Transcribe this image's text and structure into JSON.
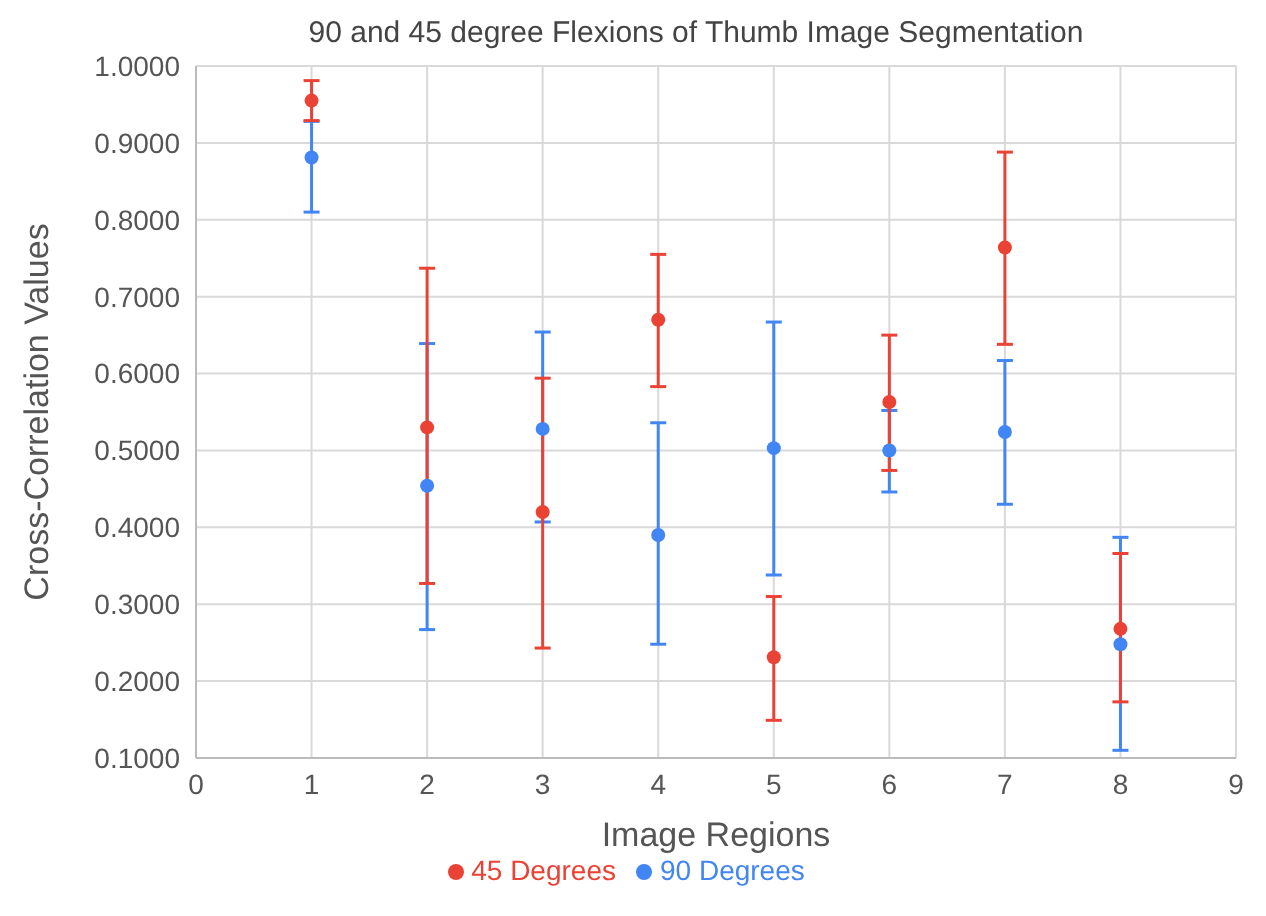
{
  "chart_data": {
    "type": "scatter",
    "title": "90 and 45 degree Flexions of Thumb Image Segmentation",
    "xlabel": "Image Regions",
    "ylabel": "Cross-Correlation Values",
    "x": [
      1,
      2,
      3,
      4,
      5,
      6,
      7,
      8
    ],
    "series": [
      {
        "name": "90 Degrees",
        "color": "#4285f4",
        "values": [
          0.881,
          0.454,
          0.528,
          0.39,
          0.503,
          0.5,
          0.524,
          0.248
        ],
        "errors": [
          [
            0.81,
            0.928
          ],
          [
            0.267,
            0.639
          ],
          [
            0.407,
            0.654
          ],
          [
            0.248,
            0.536
          ],
          [
            0.338,
            0.667
          ],
          [
            0.446,
            0.552
          ],
          [
            0.43,
            0.617
          ],
          [
            0.11,
            0.387
          ]
        ]
      },
      {
        "name": "45 Degrees",
        "color": "#ea4335",
        "values": [
          0.955,
          0.53,
          0.42,
          0.67,
          0.231,
          0.563,
          0.764,
          0.268
        ],
        "errors": [
          [
            0.929,
            0.981
          ],
          [
            0.327,
            0.737
          ],
          [
            0.243,
            0.594
          ],
          [
            0.583,
            0.755
          ],
          [
            0.149,
            0.31
          ],
          [
            0.474,
            0.65
          ],
          [
            0.638,
            0.888
          ],
          [
            0.173,
            0.366
          ]
        ]
      }
    ],
    "xlim": [
      0,
      9
    ],
    "xticks": [
      0,
      1,
      2,
      3,
      4,
      5,
      6,
      7,
      8,
      9
    ],
    "ylim": [
      0.1,
      1
    ],
    "yticks": [
      {
        "value": 0.1,
        "label": "0.1000"
      },
      {
        "value": 0.2,
        "label": "0.2000"
      },
      {
        "value": 0.3,
        "label": "0.3000"
      },
      {
        "value": 0.4,
        "label": "0.4000"
      },
      {
        "value": 0.5,
        "label": "0.5000"
      },
      {
        "value": 0.6,
        "label": "0.6000"
      },
      {
        "value": 0.7,
        "label": "0.7000"
      },
      {
        "value": 0.8,
        "label": "0.8000"
      },
      {
        "value": 0.9,
        "label": "0.9000"
      },
      {
        "value": 1,
        "label": "1.0000"
      }
    ],
    "grid": true,
    "legend": "bottom",
    "marker": "circle"
  }
}
